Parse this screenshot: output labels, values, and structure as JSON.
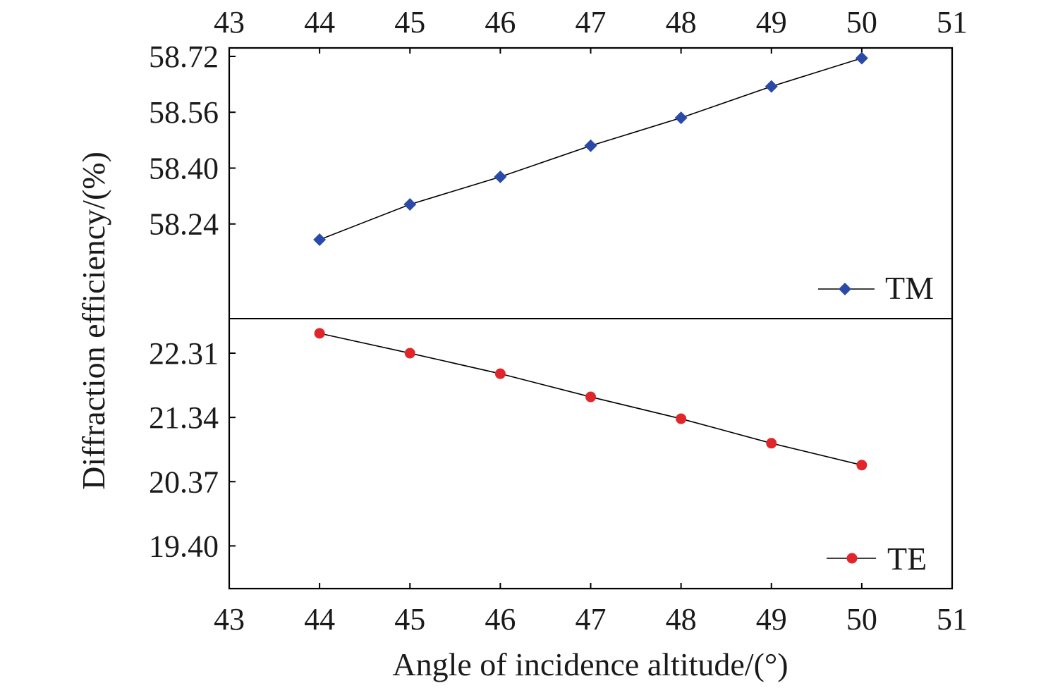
{
  "chart_data": {
    "type": "line",
    "xlabel": "Angle of incidence altitude/(°)",
    "ylabel": "Diffraction efficiency/(%)",
    "x_ticks": [
      43,
      44,
      45,
      46,
      47,
      48,
      49,
      50,
      51
    ],
    "xlim": [
      43,
      51
    ],
    "grid": false,
    "panels": [
      {
        "name": "upper",
        "ylim": [
          58.09,
          58.72
        ],
        "y_ticks": [
          "58.72",
          "58.56",
          "58.40",
          "58.24"
        ],
        "series": [
          {
            "name": "TM",
            "marker": "diamond",
            "color": "#2b4aa8",
            "legend": "lower-right",
            "x": [
              44,
              45,
              46,
              47,
              48,
              49,
              50
            ],
            "y": [
              58.195,
              58.296,
              58.375,
              58.464,
              58.544,
              58.634,
              58.715
            ]
          }
        ]
      },
      {
        "name": "lower",
        "ylim": [
          19.0,
          22.8
        ],
        "y_ticks": [
          "22.31",
          "21.34",
          "20.37",
          "19.40"
        ],
        "series": [
          {
            "name": "TE",
            "marker": "circle",
            "color": "#e0262a",
            "legend": "lower-right",
            "x": [
              44,
              45,
              46,
              47,
              48,
              49,
              50
            ],
            "y": [
              22.61,
              22.31,
              22.0,
              21.65,
              21.32,
              20.95,
              20.62
            ]
          }
        ]
      }
    ]
  }
}
